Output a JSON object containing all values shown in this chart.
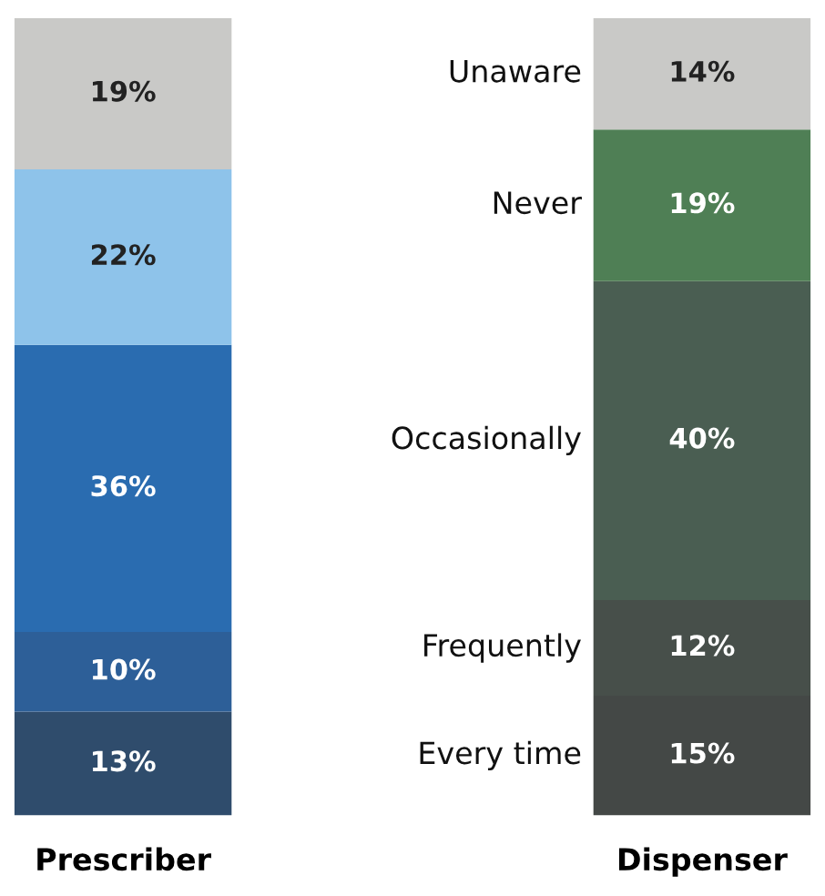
{
  "chart_data": {
    "type": "bar",
    "stacked": true,
    "categories": [
      "Prescriber",
      "Dispenser"
    ],
    "legend": false,
    "series": [
      {
        "name": "Every time",
        "colors": [
          "#2f4c6c",
          "#444846"
        ],
        "values": [
          13,
          15
        ],
        "value_labels": [
          "13%",
          "15%"
        ]
      },
      {
        "name": "Frequently",
        "colors": [
          "#2d5f98",
          "#474f4a"
        ],
        "values": [
          10,
          12
        ],
        "value_labels": [
          "10%",
          "12%"
        ]
      },
      {
        "name": "Occasionally",
        "colors": [
          "#2a6cb0",
          "#4a5e52"
        ],
        "values": [
          36,
          40
        ],
        "value_labels": [
          "36%",
          "40%"
        ]
      },
      {
        "name": "Never",
        "colors": [
          "#8ec3ea",
          "#4f7f55"
        ],
        "values": [
          22,
          19
        ],
        "value_labels": [
          "22%",
          "19%"
        ]
      },
      {
        "name": "Unaware",
        "colors": [
          "#c9c9c7",
          "#c9c9c7"
        ],
        "values": [
          19,
          14
        ],
        "value_labels": [
          "19%",
          "14%"
        ]
      }
    ]
  }
}
